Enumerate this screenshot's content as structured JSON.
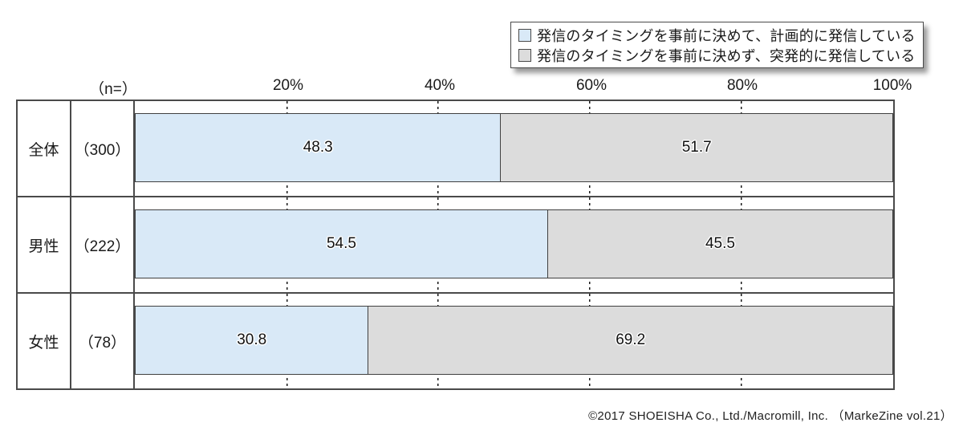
{
  "legend": {
    "items": [
      {
        "label": "発信のタイミングを事前に決めて、計画的に発信している",
        "color": "#d9e9f7"
      },
      {
        "label": "発信のタイミングを事前に決めず、突発的に発信している",
        "color": "#dcdcdc"
      }
    ]
  },
  "axis": {
    "n_label": "（n=）",
    "ticks": [
      "20%",
      "40%",
      "60%",
      "80%",
      "100%"
    ]
  },
  "chart_data": {
    "type": "bar",
    "orientation": "horizontal",
    "stacked": true,
    "unit": "%",
    "xlim": [
      0,
      100
    ],
    "gridlines_percent": [
      20,
      40,
      60,
      80
    ],
    "grid": "dotted-vertical",
    "legend_position": "top-right",
    "categories": [
      "全体",
      "男性",
      "女性"
    ],
    "n_values": [
      "（300）",
      "（222）",
      "（78）"
    ],
    "series": [
      {
        "name": "発信のタイミングを事前に決めて、計画的に発信している",
        "color": "#d9e9f7",
        "values": [
          48.3,
          54.5,
          30.8
        ]
      },
      {
        "name": "発信のタイミングを事前に決めず、突発的に発信している",
        "color": "#dcdcdc",
        "values": [
          51.7,
          45.5,
          69.2
        ]
      }
    ]
  },
  "footer": {
    "credit": "©2017 SHOEISHA Co., Ltd./Macromill, Inc. （MarkeZine vol.21）"
  }
}
